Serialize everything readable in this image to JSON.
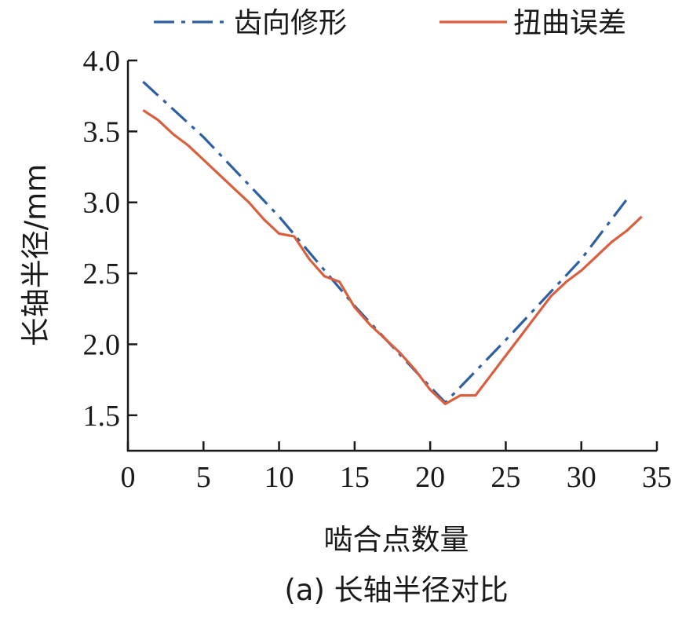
{
  "chart_data": {
    "type": "line",
    "xlabel": "啮合点数量",
    "ylabel": "长轴半径/mm",
    "caption": "(a) 长轴半径对比",
    "xlim": [
      0,
      35
    ],
    "ylim": [
      1.25,
      4.0
    ],
    "xticks": [
      0,
      5,
      10,
      15,
      20,
      25,
      30,
      35
    ],
    "yticks": [
      1.5,
      2.0,
      2.5,
      3.0,
      3.5,
      4.0
    ],
    "xtick_labels": [
      "0",
      "5",
      "10",
      "15",
      "20",
      "25",
      "30",
      "35"
    ],
    "ytick_labels": [
      "1.5",
      "2.0",
      "2.5",
      "3.0",
      "3.5",
      "4.0"
    ],
    "grid": false,
    "legend": "top",
    "series": [
      {
        "name": "齿向修形",
        "color": "#2d5fa3",
        "style": "dashdot",
        "x": [
          1,
          5,
          10,
          15,
          20,
          21,
          25,
          30,
          33
        ],
        "y": [
          3.85,
          3.46,
          2.9,
          2.27,
          1.7,
          1.59,
          2.03,
          2.6,
          3.02
        ]
      },
      {
        "name": "扭曲误差",
        "color": "#d9603e",
        "style": "solid",
        "x": [
          1,
          2,
          3,
          4,
          5,
          6,
          7,
          8,
          9,
          10,
          11,
          12,
          13,
          14,
          15,
          16,
          17,
          18,
          19,
          20,
          21,
          22,
          23,
          24,
          25,
          26,
          27,
          28,
          29,
          30,
          31,
          32,
          33,
          34
        ],
        "y": [
          3.65,
          3.58,
          3.48,
          3.4,
          3.3,
          3.2,
          3.1,
          3.0,
          2.88,
          2.78,
          2.76,
          2.6,
          2.48,
          2.44,
          2.26,
          2.14,
          2.04,
          1.94,
          1.82,
          1.68,
          1.58,
          1.64,
          1.64,
          1.78,
          1.92,
          2.06,
          2.2,
          2.34,
          2.44,
          2.52,
          2.62,
          2.72,
          2.8,
          2.9
        ]
      }
    ]
  }
}
